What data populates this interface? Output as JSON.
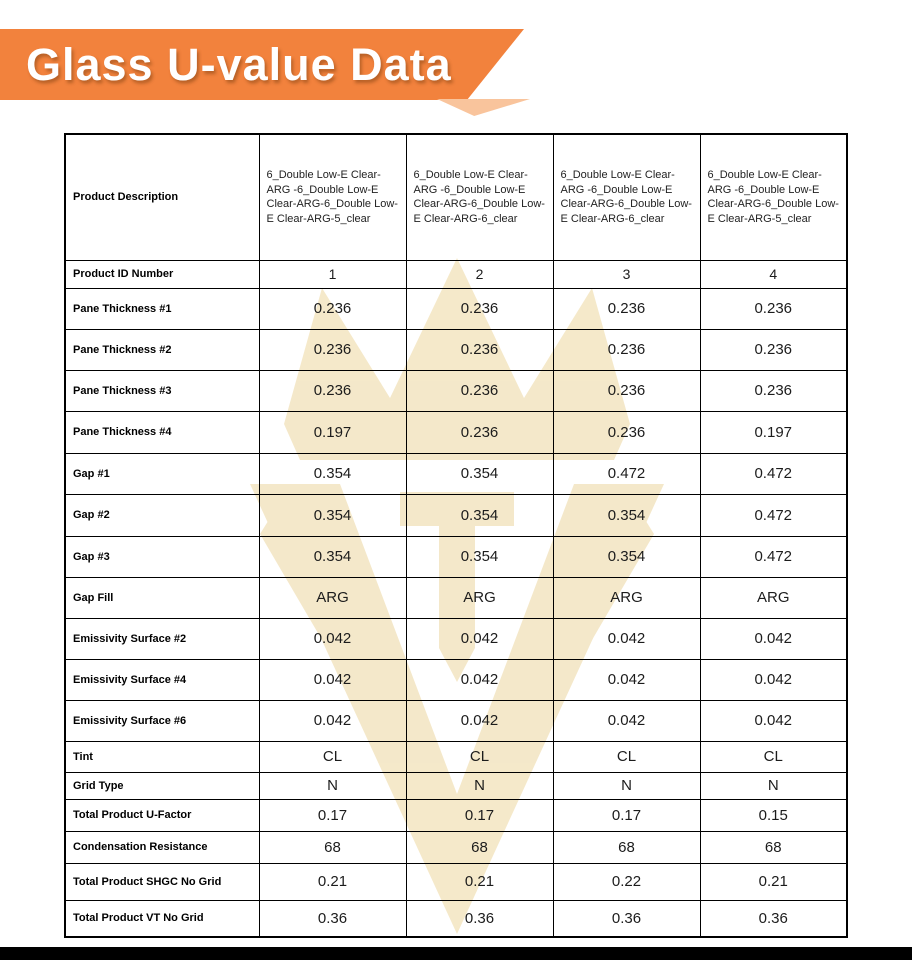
{
  "banner": {
    "title": "Glass U-value Data"
  },
  "colors": {
    "banner_orange": "#F2823D",
    "banner_fold": "#F9C49C",
    "watermark_tan": "#F1E0B6",
    "border_black": "#000000"
  },
  "table": {
    "rows": [
      {
        "label": "Product Description",
        "values": [
          "6_Double Low-E Clear- ARG -6_Double Low-E Clear-ARG-6_Double Low-E Clear-ARG-5_clear",
          "6_Double Low-E Clear- ARG -6_Double Low-E Clear-ARG-6_Double Low-E Clear-ARG-6_clear",
          "6_Double Low-E Clear- ARG -6_Double Low-E Clear-ARG-6_Double Low-E Clear-ARG-6_clear",
          "6_Double Low-E Clear- ARG -6_Double Low-E Clear-ARG-6_Double Low-E Clear-ARG-5_clear"
        ]
      },
      {
        "label": "Product ID Number",
        "values": [
          "1",
          "2",
          "3",
          "4"
        ]
      },
      {
        "label": "Pane Thickness #1",
        "values": [
          "0.236",
          "0.236",
          "0.236",
          "0.236"
        ]
      },
      {
        "label": "Pane Thickness #2",
        "values": [
          "0.236",
          "0.236",
          "0.236",
          "0.236"
        ]
      },
      {
        "label": "Pane Thickness #3",
        "values": [
          "0.236",
          "0.236",
          "0.236",
          "0.236"
        ]
      },
      {
        "label": "Pane Thickness #4",
        "values": [
          "0.197",
          "0.236",
          "0.236",
          "0.197"
        ]
      },
      {
        "label": "Gap #1",
        "values": [
          "0.354",
          "0.354",
          "0.472",
          "0.472"
        ]
      },
      {
        "label": "Gap #2",
        "values": [
          "0.354",
          "0.354",
          "0.354",
          "0.472"
        ]
      },
      {
        "label": "Gap #3",
        "values": [
          "0.354",
          "0.354",
          "0.354",
          "0.472"
        ]
      },
      {
        "label": "Gap Fill",
        "values": [
          "ARG",
          "ARG",
          "ARG",
          "ARG"
        ]
      },
      {
        "label": "Emissivity Surface #2",
        "values": [
          "0.042",
          "0.042",
          "0.042",
          "0.042"
        ]
      },
      {
        "label": "Emissivity Surface #4",
        "values": [
          "0.042",
          "0.042",
          "0.042",
          "0.042"
        ]
      },
      {
        "label": "Emissivity Surface #6",
        "values": [
          "0.042",
          "0.042",
          "0.042",
          "0.042"
        ]
      },
      {
        "label": "Tint",
        "values": [
          "CL",
          "CL",
          "CL",
          "CL"
        ]
      },
      {
        "label": "Grid Type",
        "values": [
          "N",
          "N",
          "N",
          "N"
        ]
      },
      {
        "label": "Total Product U-Factor",
        "values": [
          "0.17",
          "0.17",
          "0.17",
          "0.15"
        ]
      },
      {
        "label": "Condensation Resistance",
        "values": [
          "68",
          "68",
          "68",
          "68"
        ]
      },
      {
        "label": "Total Product SHGC No Grid",
        "values": [
          "0.21",
          "0.21",
          "0.22",
          "0.21"
        ]
      },
      {
        "label": "Total Product VT No Grid",
        "values": [
          "0.36",
          "0.36",
          "0.36",
          "0.36"
        ]
      }
    ]
  }
}
